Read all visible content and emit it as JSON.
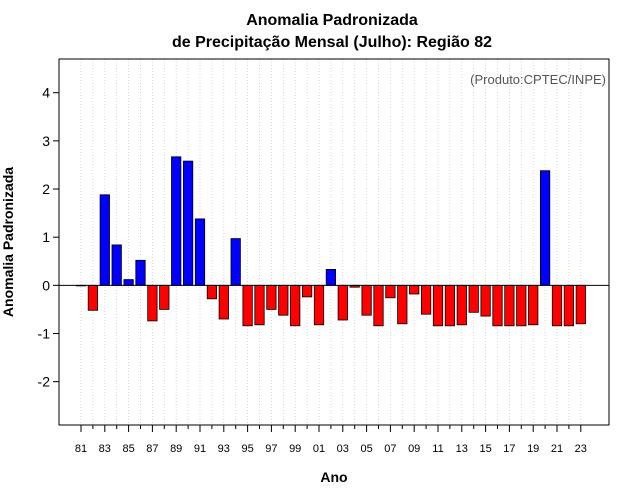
{
  "chart_data": {
    "type": "bar",
    "title_line1": "Anomalia Padronizada",
    "title_line2": "de Precipitação Mensal (Julho): Região 82",
    "xlabel": "Ano",
    "ylabel": "Anomalia Padronizada",
    "annotation": "(Produto:CPTEC/INPE)",
    "ylim": [
      -2.9,
      4.7
    ],
    "yticks": [
      -2,
      -1,
      0,
      1,
      2,
      3,
      4
    ],
    "ytick_labels": [
      "-2",
      "-1",
      "0",
      "1",
      "2",
      "3",
      "4"
    ],
    "xtick_labels": [
      "81",
      "83",
      "85",
      "87",
      "89",
      "91",
      "93",
      "95",
      "97",
      "99",
      "01",
      "03",
      "05",
      "07",
      "09",
      "11",
      "13",
      "15",
      "17",
      "19",
      "21",
      "23"
    ],
    "categories": [
      "1981",
      "1982",
      "1983",
      "1984",
      "1985",
      "1986",
      "1987",
      "1988",
      "1989",
      "1990",
      "1991",
      "1992",
      "1993",
      "1994",
      "1995",
      "1996",
      "1997",
      "1998",
      "1999",
      "2000",
      "2001",
      "2002",
      "2003",
      "2004",
      "2005",
      "2006",
      "2007",
      "2008",
      "2009",
      "2010",
      "2011",
      "2012",
      "2013",
      "2014",
      "2015",
      "2016",
      "2017",
      "2018",
      "2019",
      "2020",
      "2021",
      "2022",
      "2023"
    ],
    "values": [
      0.0,
      -0.52,
      1.88,
      0.84,
      0.12,
      0.52,
      -0.74,
      -0.5,
      2.67,
      2.58,
      1.38,
      -0.28,
      -0.7,
      0.97,
      -0.84,
      -0.82,
      -0.5,
      -0.62,
      -0.84,
      -0.24,
      -0.82,
      0.33,
      -0.72,
      -0.04,
      -0.62,
      -0.84,
      -0.26,
      -0.8,
      -0.18,
      -0.6,
      -0.84,
      -0.84,
      -0.82,
      -0.56,
      -0.64,
      -0.84,
      -0.84,
      -0.84,
      -0.82,
      2.38,
      -0.84,
      -0.84,
      -0.8
    ],
    "positive_color": "#0000ff",
    "negative_color": "#ff0000",
    "grid": "vertical-dotted"
  }
}
